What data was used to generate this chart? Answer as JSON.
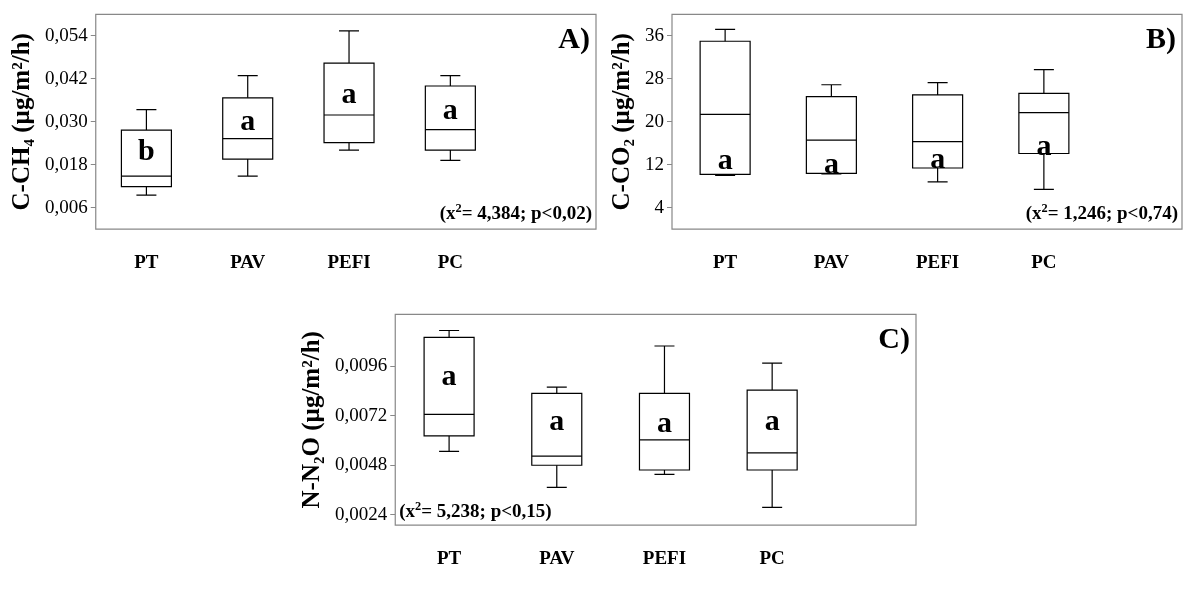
{
  "chart_data": [
    {
      "type": "box",
      "ylabel": "C-CH₄ (µg/m²/h)",
      "categories": [
        "PT",
        "PAV",
        "PEFI",
        "PC"
      ],
      "color": "#000000",
      "boxes": [
        {
          "low": 0.0095,
          "q1": 0.0119,
          "median": 0.0148,
          "q3": 0.0277,
          "high": 0.0334
        },
        {
          "low": 0.0148,
          "q1": 0.0196,
          "median": 0.0253,
          "q3": 0.0367,
          "high": 0.0429
        },
        {
          "low": 0.0221,
          "q1": 0.0242,
          "median": 0.0319,
          "q3": 0.0464,
          "high": 0.0554
        },
        {
          "low": 0.0192,
          "q1": 0.0221,
          "median": 0.0278,
          "q3": 0.04,
          "high": 0.0429
        }
      ],
      "ylim": [
        0,
        0.06
      ],
      "yticks": [
        {
          "value": 0.006,
          "label": "0,006"
        },
        {
          "value": 0.018,
          "label": "0,018"
        },
        {
          "value": 0.03,
          "label": "0,030"
        },
        {
          "value": 0.042,
          "label": "0,042"
        },
        {
          "value": 0.054,
          "label": "0,054"
        }
      ],
      "grid": false,
      "annotations": [
        "A)",
        "(x$^{2}$= 4,384; p<0,02)",
        "b",
        "a",
        "a",
        "a"
      ]
    },
    {
      "type": "box",
      "ylabel": "C-CO₂ (µg/m²/h)",
      "categories": [
        "PT",
        "PAV",
        "PEFI",
        "PC"
      ],
      "color": "#000000",
      "boxes": [
        {
          "low": 10.0,
          "q1": 10.2,
          "median": 21.4,
          "q3": 35.0,
          "high": 37.2
        },
        {
          "low": 10.3,
          "q1": 10.4,
          "median": 16.6,
          "q3": 24.7,
          "high": 26.9
        },
        {
          "low": 8.8,
          "q1": 11.4,
          "median": 16.3,
          "q3": 25.0,
          "high": 27.3
        },
        {
          "low": 7.4,
          "q1": 14.1,
          "median": 21.7,
          "q3": 25.3,
          "high": 29.7
        }
      ],
      "ylim": [
        0,
        40
      ],
      "yticks": [
        4,
        12,
        20,
        28,
        36
      ],
      "grid": false,
      "annotations": [
        "B)",
        "(x$^{2}$= 1,246; p<0,74)",
        "a",
        "a",
        "a",
        "a"
      ]
    },
    {
      "type": "box",
      "ylabel": "N-N₂O (µg/m²/h)",
      "categories": [
        "PT",
        "PAV",
        "PEFI",
        "PC"
      ],
      "color": "#000000",
      "boxes": [
        {
          "low": 0.00547,
          "q1": 0.00622,
          "median": 0.00726,
          "q3": 0.01099,
          "high": 0.01132
        },
        {
          "low": 0.00373,
          "q1": 0.0048,
          "median": 0.00524,
          "q3": 0.00828,
          "high": 0.00858
        },
        {
          "low": 0.00436,
          "q1": 0.00457,
          "median": 0.00603,
          "q3": 0.00828,
          "high": 0.01057
        },
        {
          "low": 0.00276,
          "q1": 0.00457,
          "median": 0.0054,
          "q3": 0.00844,
          "high": 0.00974
        }
      ],
      "ylim": [
        0.0019,
        0.0121
      ],
      "yticks": [
        {
          "value": 0.0024,
          "label": "0,0024"
        },
        {
          "value": 0.0048,
          "label": "0,0048"
        },
        {
          "value": 0.0072,
          "label": "0,0072"
        },
        {
          "value": 0.0096,
          "label": "0,0096"
        }
      ],
      "grid": false,
      "annotations": [
        "C)",
        "(x$^{2}$= 5,238; p<0,15)",
        "a",
        "a",
        "a",
        "a"
      ]
    }
  ]
}
